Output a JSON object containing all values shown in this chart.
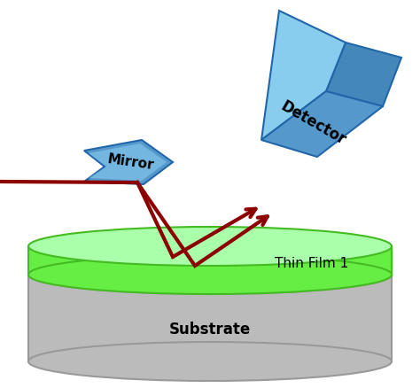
{
  "bg_color": "#ffffff",
  "substrate_color": "#c8c8c8",
  "substrate_edge_color": "#999999",
  "substrate_side_color": "#bbbbbb",
  "thin_film_top_color": "#aaffaa",
  "thin_film_side_color": "#66ee44",
  "thin_film_edge_color": "#44bb22",
  "mirror_main_color": "#5599cc",
  "mirror_light_color": "#88ccee",
  "mirror_edge_color": "#2266aa",
  "detector_front_color": "#5599cc",
  "detector_top_color": "#88ccee",
  "detector_right_color": "#4488bb",
  "detector_edge_color": "#2266aa",
  "beam_color": "#8b0000",
  "text_color": "#000000",
  "mirror_label": "Mirror",
  "detector_label": "Detector",
  "thin_film_label": "Thin Film 1",
  "substrate_label": "Substrate",
  "figsize": [
    4.74,
    4.38
  ],
  "dpi": 100
}
